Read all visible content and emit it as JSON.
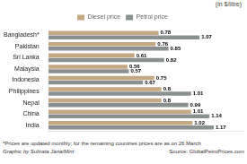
{
  "chart_data": {
    "type": "bar",
    "orientation": "horizontal",
    "categories": [
      "Bangladesh*",
      "Pakistan",
      "Sri Lanka",
      "Malaysia",
      "Indonesia",
      "Philippines",
      "Nepal",
      "China",
      "India"
    ],
    "series": [
      {
        "name": "Diesel price",
        "color": "#c4a882",
        "values": [
          0.78,
          0.76,
          0.61,
          0.56,
          0.75,
          0.8,
          0.8,
          1.01,
          1.02
        ]
      },
      {
        "name": "Petrol price",
        "color": "#8a9090",
        "values": [
          1.07,
          0.85,
          0.82,
          0.57,
          0.67,
          1.01,
          0.99,
          1.14,
          1.17
        ]
      }
    ],
    "xlim": [
      0,
      1.38
    ],
    "xticks": [],
    "tick_labels": "y",
    "grid": false,
    "legend": "top",
    "data_labels": true,
    "annotations": [
      "(in $/litre)",
      "*Prices are updated monthly; for the remaining countries prices are as on 26 March",
      "Graphic by Subrata Jana/Mint",
      "Source: GlobalPetroPrices.com"
    ]
  }
}
